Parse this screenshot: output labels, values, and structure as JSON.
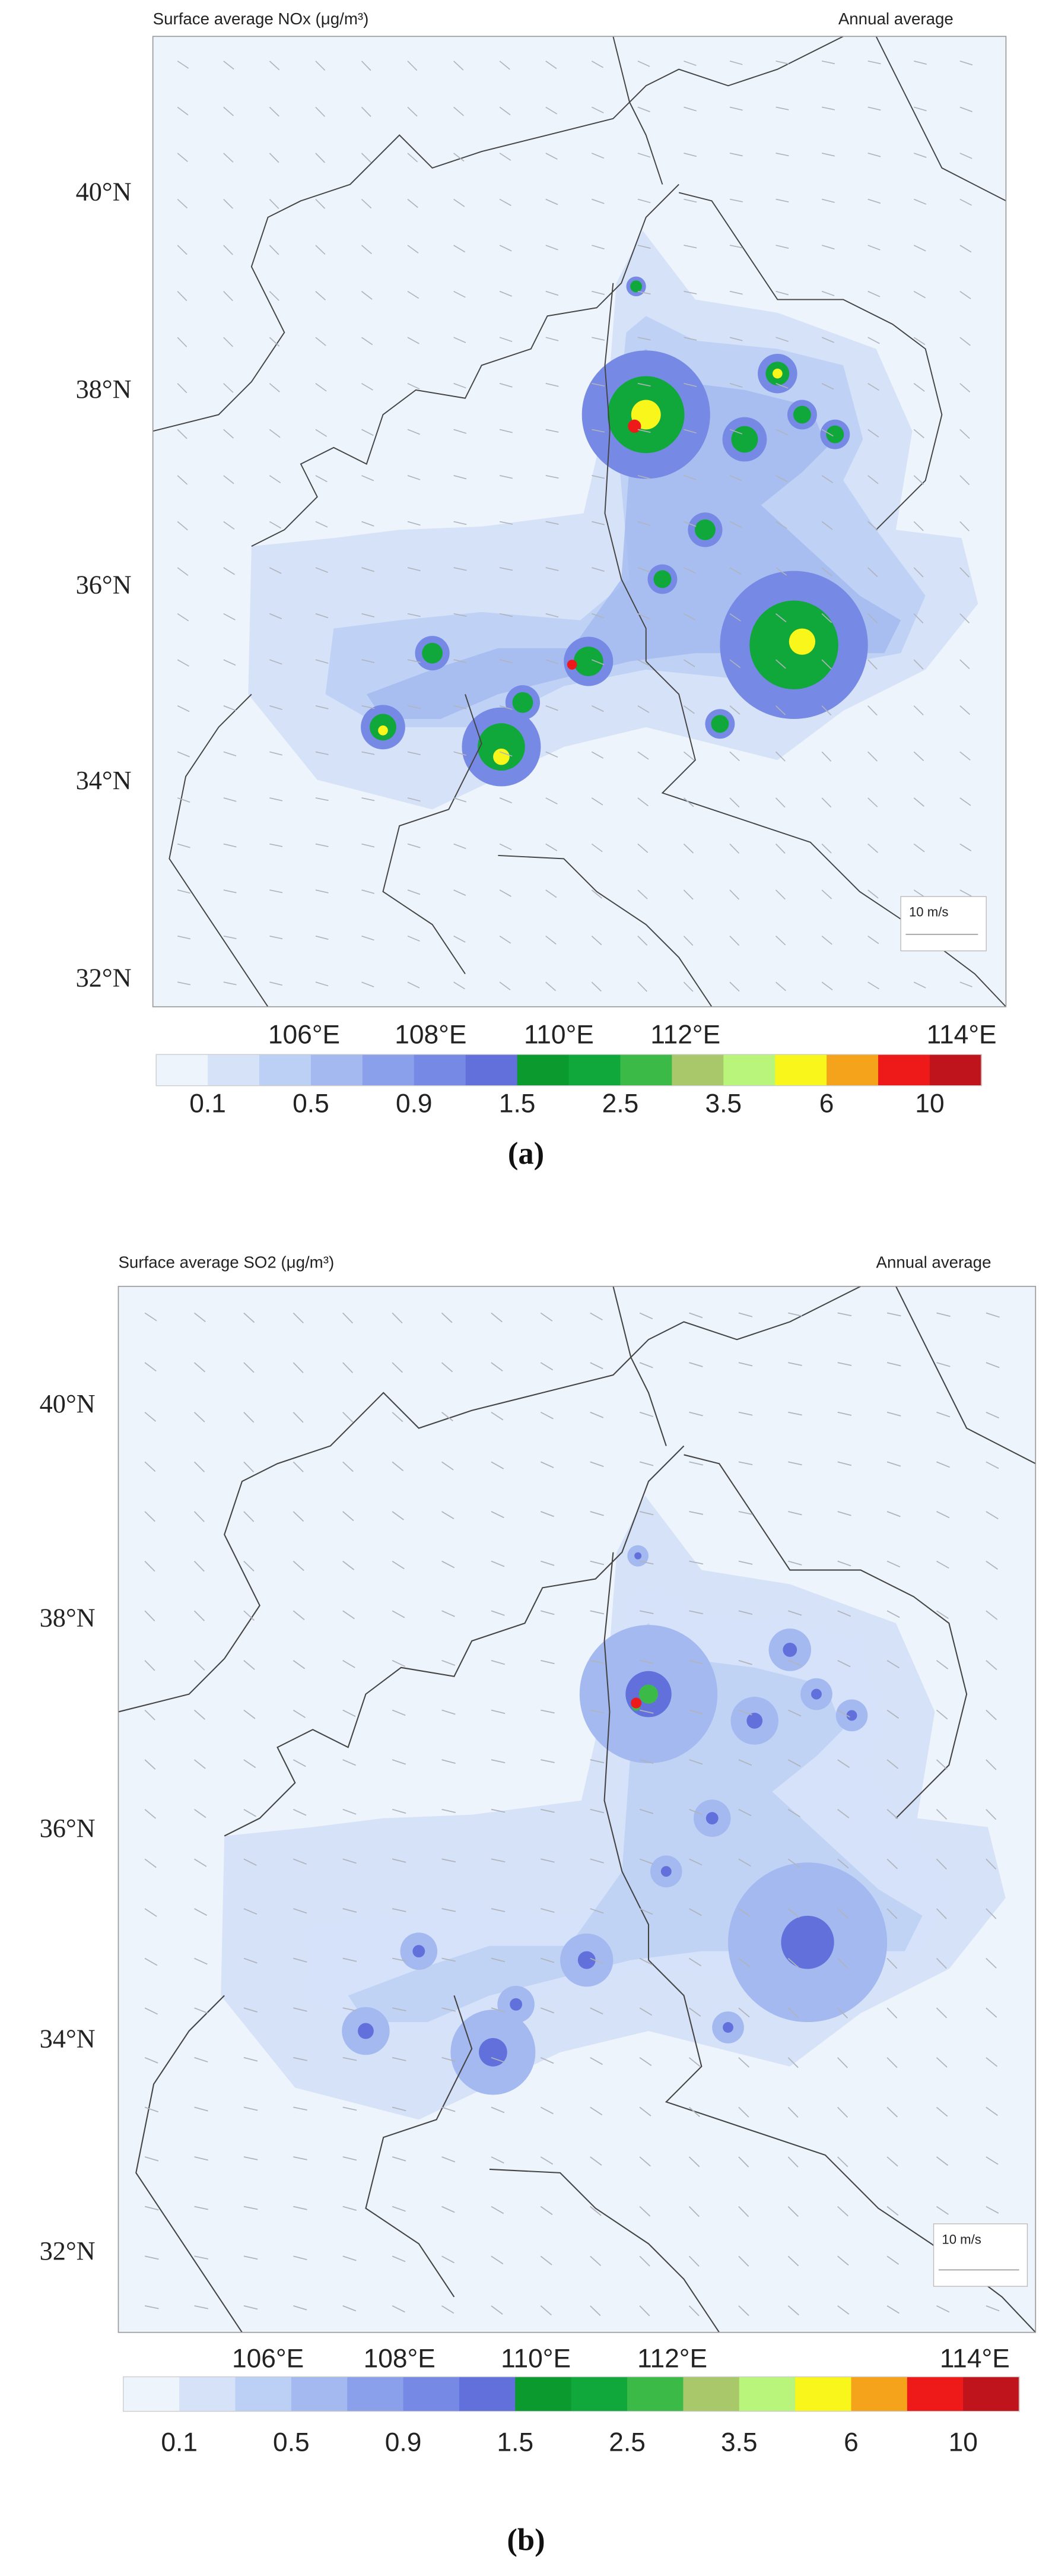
{
  "panels": [
    {
      "title": "Surface average NOx (μg/m³)",
      "period": "Annual average",
      "lat_labels": [
        "40°N",
        "38°N",
        "36°N",
        "34°N",
        "32°N"
      ],
      "lon_labels": [
        "106°E",
        "108°E",
        "110°E",
        "112°E",
        "114°E"
      ],
      "scale_label": "10 m/s",
      "colorbar": {
        "labels": [
          "0.1",
          "0.5",
          "0.9",
          "1.5",
          "2.5",
          "3.5",
          "6",
          "10"
        ],
        "colors": [
          "#eef4fc",
          "#d6e2f8",
          "#bccff4",
          "#a3b9f0",
          "#8aa0ea",
          "#7689e4",
          "#6270dc",
          "#0a9a2e",
          "#10a83a",
          "#3cba48",
          "#a8c86a",
          "#b8f57a",
          "#f8f61a",
          "#f5a31a",
          "#ee1a1a",
          "#c0141c"
        ]
      },
      "caption": "(a)"
    },
    {
      "title": "Surface average SO2 (μg/m³)",
      "period": "Annual average",
      "lat_labels": [
        "40°N",
        "38°N",
        "36°N",
        "34°N",
        "32°N"
      ],
      "lon_labels": [
        "106°E",
        "108°E",
        "110°E",
        "112°E",
        "114°E"
      ],
      "scale_label": "10 m/s",
      "colorbar": {
        "labels": [
          "0.1",
          "0.5",
          "0.9",
          "1.5",
          "2.5",
          "3.5",
          "6",
          "10"
        ],
        "colors": [
          "#eef4fc",
          "#d6e2f8",
          "#bccff4",
          "#a3b9f0",
          "#8aa0ea",
          "#7689e4",
          "#6270dc",
          "#0a9a2e",
          "#10a83a",
          "#3cba48",
          "#a8c86a",
          "#b8f57a",
          "#f8f61a",
          "#f5a31a",
          "#ee1a1a",
          "#c0141c"
        ]
      },
      "caption": "(b)"
    }
  ]
}
